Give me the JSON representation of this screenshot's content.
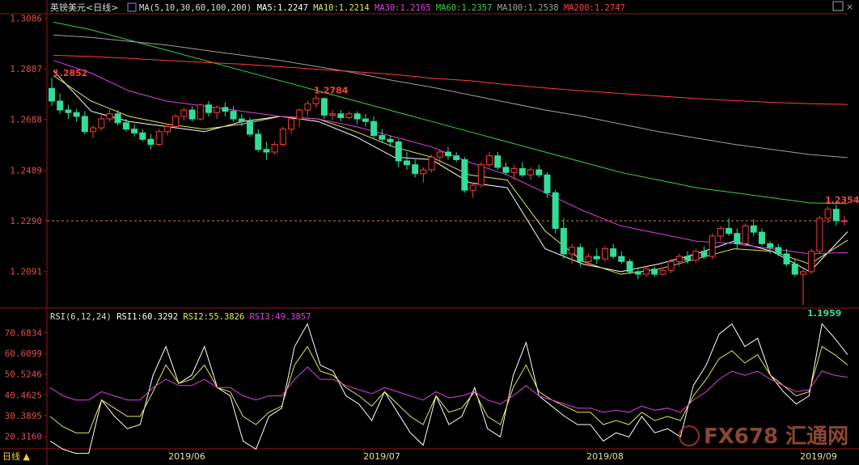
{
  "header": {
    "symbol": "英镑美元",
    "period": "<日线>",
    "items": [
      {
        "label": "MA(5,10,30,60,100,200)",
        "color": "#dddddd"
      },
      {
        "label": "MA5:1.2247",
        "color": "#ffffff"
      },
      {
        "label": "MA10:1.2214",
        "color": "#e6e65c"
      },
      {
        "label": "MA30:1.2165",
        "color": "#e040e0"
      },
      {
        "label": "MA60:1.2357",
        "color": "#40d040"
      },
      {
        "label": "MA100:1.2538",
        "color": "#a0a0a0"
      },
      {
        "label": "MA200:1.2747",
        "color": "#ff4040"
      }
    ]
  },
  "rsi_header": {
    "items": [
      {
        "label": "RSI(6,12,24)",
        "color": "#dddddd"
      },
      {
        "label": "RSI1:60.3292",
        "color": "#ffffff"
      },
      {
        "label": "RSI2:55.3826",
        "color": "#e6e65c"
      },
      {
        "label": "RSI3:49.3857",
        "color": "#e040e0"
      }
    ]
  },
  "price_axis_labels": [
    "1.3086",
    "1.2887",
    "1.2688",
    "1.2489",
    "1.2290",
    "1.2091"
  ],
  "rsi_axis_labels": [
    "70.6834",
    "60.6099",
    "50.5246",
    "40.4625",
    "30.3895",
    "20.3160"
  ],
  "date_labels": [
    "2019/06",
    "2019/07",
    "2019/08",
    "2019/09"
  ],
  "period_button": "日线 ▲",
  "watermark": "FX678 汇通网",
  "colors": {
    "up": "#ff3b3b",
    "down": "#33dd99",
    "grid": "#8b1a1a",
    "axis_text": "#e05050",
    "current_price_line": "#e07a3a"
  },
  "chart_data": [
    {
      "type": "candlestick",
      "title": "英镑美元<日线>",
      "ylim": [
        1.195,
        1.31
      ],
      "current_price": 1.229,
      "annotations": [
        {
          "label": "1.2852",
          "value": 1.2852,
          "kind": "high"
        },
        {
          "label": "1.2784",
          "value": 1.2784,
          "kind": "high"
        },
        {
          "label": "1.2354",
          "value": 1.2354,
          "kind": "high"
        },
        {
          "label": "1.1959",
          "value": 1.1959,
          "kind": "low"
        }
      ],
      "ohlc": [
        [
          1.281,
          1.2852,
          1.274,
          1.276
        ],
        [
          1.276,
          1.279,
          1.271,
          1.2725
        ],
        [
          1.2725,
          1.2745,
          1.269,
          1.2715
        ],
        [
          1.2715,
          1.273,
          1.268,
          1.27
        ],
        [
          1.27,
          1.272,
          1.263,
          1.264
        ],
        [
          1.264,
          1.2665,
          1.2615,
          1.2655
        ],
        [
          1.2655,
          1.2705,
          1.2645,
          1.269
        ],
        [
          1.269,
          1.2725,
          1.268,
          1.271
        ],
        [
          1.271,
          1.2725,
          1.2665,
          1.2675
        ],
        [
          1.2675,
          1.269,
          1.264,
          1.265
        ],
        [
          1.265,
          1.267,
          1.262,
          1.2635
        ],
        [
          1.2635,
          1.265,
          1.26,
          1.261
        ],
        [
          1.261,
          1.263,
          1.257,
          1.259
        ],
        [
          1.259,
          1.265,
          1.2585,
          1.264
        ],
        [
          1.264,
          1.267,
          1.2625,
          1.266
        ],
        [
          1.266,
          1.271,
          1.265,
          1.27
        ],
        [
          1.27,
          1.2735,
          1.2685,
          1.2725
        ],
        [
          1.2725,
          1.274,
          1.268,
          1.269
        ],
        [
          1.269,
          1.275,
          1.2685,
          1.2745
        ],
        [
          1.2745,
          1.276,
          1.27,
          1.2715
        ],
        [
          1.2715,
          1.2745,
          1.269,
          1.2735
        ],
        [
          1.2735,
          1.2755,
          1.27,
          1.272
        ],
        [
          1.272,
          1.274,
          1.268,
          1.269
        ],
        [
          1.269,
          1.271,
          1.266,
          1.268
        ],
        [
          1.268,
          1.2695,
          1.262,
          1.263
        ],
        [
          1.263,
          1.265,
          1.256,
          1.257
        ],
        [
          1.257,
          1.26,
          1.253,
          1.256
        ],
        [
          1.256,
          1.26,
          1.255,
          1.259
        ],
        [
          1.259,
          1.266,
          1.258,
          1.265
        ],
        [
          1.265,
          1.27,
          1.263,
          1.269
        ],
        [
          1.269,
          1.273,
          1.266,
          1.2725
        ],
        [
          1.2725,
          1.276,
          1.27,
          1.275
        ],
        [
          1.275,
          1.2784,
          1.2735,
          1.277
        ],
        [
          1.277,
          1.2775,
          1.269,
          1.2705
        ],
        [
          1.2705,
          1.2725,
          1.2685,
          1.271
        ],
        [
          1.271,
          1.2725,
          1.268,
          1.2695
        ],
        [
          1.2695,
          1.272,
          1.269,
          1.271
        ],
        [
          1.271,
          1.272,
          1.267,
          1.269
        ],
        [
          1.269,
          1.271,
          1.266,
          1.268
        ],
        [
          1.268,
          1.27,
          1.261,
          1.2625
        ],
        [
          1.2625,
          1.265,
          1.2595,
          1.261
        ],
        [
          1.261,
          1.2625,
          1.258,
          1.26
        ],
        [
          1.26,
          1.261,
          1.25,
          1.2525
        ],
        [
          1.2525,
          1.256,
          1.249,
          1.251
        ],
        [
          1.251,
          1.253,
          1.246,
          1.2475
        ],
        [
          1.2475,
          1.25,
          1.244,
          1.249
        ],
        [
          1.249,
          1.255,
          1.248,
          1.254
        ],
        [
          1.254,
          1.257,
          1.251,
          1.256
        ],
        [
          1.256,
          1.258,
          1.253,
          1.2545
        ],
        [
          1.2545,
          1.256,
          1.252,
          1.253
        ],
        [
          1.253,
          1.254,
          1.24,
          1.241
        ],
        [
          1.241,
          1.244,
          1.238,
          1.243
        ],
        [
          1.243,
          1.252,
          1.242,
          1.251
        ],
        [
          1.251,
          1.256,
          1.25,
          1.2545
        ],
        [
          1.2545,
          1.256,
          1.249,
          1.25
        ],
        [
          1.25,
          1.252,
          1.247,
          1.248
        ],
        [
          1.248,
          1.251,
          1.245,
          1.2495
        ],
        [
          1.2495,
          1.252,
          1.246,
          1.247
        ],
        [
          1.247,
          1.25,
          1.245,
          1.249
        ],
        [
          1.249,
          1.251,
          1.246,
          1.247
        ],
        [
          1.247,
          1.248,
          1.238,
          1.24
        ],
        [
          1.24,
          1.241,
          1.224,
          1.226
        ],
        [
          1.226,
          1.23,
          1.214,
          1.216
        ],
        [
          1.216,
          1.22,
          1.212,
          1.2185
        ],
        [
          1.2185,
          1.22,
          1.211,
          1.213
        ],
        [
          1.213,
          1.216,
          1.211,
          1.215
        ],
        [
          1.215,
          1.218,
          1.212,
          1.214
        ],
        [
          1.214,
          1.219,
          1.213,
          1.218
        ],
        [
          1.218,
          1.22,
          1.214,
          1.215
        ],
        [
          1.215,
          1.217,
          1.212,
          1.213
        ],
        [
          1.213,
          1.214,
          1.208,
          1.209
        ],
        [
          1.209,
          1.21,
          1.206,
          1.208
        ],
        [
          1.208,
          1.211,
          1.207,
          1.21
        ],
        [
          1.21,
          1.211,
          1.207,
          1.208
        ],
        [
          1.208,
          1.21,
          1.2075,
          1.2095
        ],
        [
          1.2095,
          1.214,
          1.2085,
          1.213
        ],
        [
          1.213,
          1.216,
          1.211,
          1.215
        ],
        [
          1.215,
          1.217,
          1.212,
          1.2135
        ],
        [
          1.2135,
          1.218,
          1.2125,
          1.217
        ],
        [
          1.217,
          1.219,
          1.214,
          1.215
        ],
        [
          1.215,
          1.224,
          1.214,
          1.223
        ],
        [
          1.223,
          1.227,
          1.221,
          1.226
        ],
        [
          1.226,
          1.23,
          1.223,
          1.224
        ],
        [
          1.224,
          1.226,
          1.218,
          1.22
        ],
        [
          1.22,
          1.228,
          1.219,
          1.227
        ],
        [
          1.227,
          1.2295,
          1.223,
          1.2245
        ],
        [
          1.2245,
          1.226,
          1.219,
          1.22
        ],
        [
          1.22,
          1.221,
          1.216,
          1.2185
        ],
        [
          1.2185,
          1.22,
          1.215,
          1.216
        ],
        [
          1.216,
          1.218,
          1.211,
          1.212
        ],
        [
          1.212,
          1.214,
          1.207,
          1.208
        ],
        [
          1.208,
          1.21,
          1.1959,
          1.209
        ],
        [
          1.209,
          1.218,
          1.208,
          1.217
        ],
        [
          1.217,
          1.231,
          1.216,
          1.23
        ],
        [
          1.23,
          1.2345,
          1.228,
          1.2335
        ],
        [
          1.2335,
          1.2354,
          1.227,
          1.229
        ],
        [
          1.229,
          1.231,
          1.227,
          1.229
        ]
      ],
      "moving_averages": [
        {
          "name": "MA5",
          "color": "#ffffff",
          "values": [
            1.288,
            1.272,
            1.268,
            1.266,
            1.264,
            1.268,
            1.27,
            1.268,
            1.262,
            1.254,
            1.253,
            1.244,
            1.242,
            1.218,
            1.212,
            1.209,
            1.212,
            1.216,
            1.221,
            1.217,
            1.209,
            1.2247
          ]
        },
        {
          "name": "MA10",
          "color": "#e6e65c",
          "values": [
            1.286,
            1.276,
            1.27,
            1.267,
            1.265,
            1.267,
            1.27,
            1.269,
            1.264,
            1.258,
            1.254,
            1.247,
            1.245,
            1.225,
            1.213,
            1.208,
            1.21,
            1.214,
            1.218,
            1.217,
            1.212,
            1.2214
          ]
        },
        {
          "name": "MA30",
          "color": "#e040e0",
          "values": [
            1.292,
            1.287,
            1.28,
            1.276,
            1.274,
            1.272,
            1.27,
            1.269,
            1.266,
            1.262,
            1.258,
            1.252,
            1.247,
            1.24,
            1.233,
            1.227,
            1.224,
            1.221,
            1.22,
            1.218,
            1.216,
            1.2165
          ]
        },
        {
          "name": "MA60",
          "color": "#40d040",
          "values": [
            1.307,
            1.304,
            1.3,
            1.296,
            1.292,
            1.288,
            1.284,
            1.28,
            1.276,
            1.272,
            1.268,
            1.264,
            1.26,
            1.256,
            1.252,
            1.248,
            1.245,
            1.242,
            1.24,
            1.238,
            1.236,
            1.2357
          ]
        },
        {
          "name": "MA100",
          "color": "#a0a0a0",
          "values": [
            1.302,
            1.301,
            1.2995,
            1.298,
            1.296,
            1.294,
            1.292,
            1.2895,
            1.287,
            1.284,
            1.2815,
            1.2785,
            1.2755,
            1.2725,
            1.27,
            1.267,
            1.264,
            1.2615,
            1.259,
            1.257,
            1.255,
            1.2538
          ]
        },
        {
          "name": "MA200",
          "color": "#ff4040",
          "values": [
            1.294,
            1.2935,
            1.2928,
            1.292,
            1.2912,
            1.2905,
            1.2895,
            1.2885,
            1.2875,
            1.2865,
            1.285,
            1.284,
            1.2825,
            1.2812,
            1.28,
            1.279,
            1.278,
            1.277,
            1.2762,
            1.2755,
            1.275,
            1.2747
          ]
        }
      ]
    },
    {
      "type": "line",
      "title": "RSI(6,12,24)",
      "ylim": [
        15,
        76
      ],
      "series": [
        {
          "name": "RSI1",
          "color": "#ffffff",
          "values": [
            18,
            14,
            12,
            12,
            38,
            30,
            24,
            26,
            50,
            64,
            46,
            50,
            64,
            44,
            40,
            18,
            14,
            30,
            34,
            64,
            75,
            55,
            52,
            40,
            36,
            28,
            42,
            32,
            22,
            16,
            40,
            26,
            30,
            44,
            24,
            20,
            50,
            66,
            40,
            35,
            30,
            26,
            26,
            18,
            22,
            20,
            30,
            22,
            24,
            20,
            45,
            55,
            70,
            75,
            64,
            68,
            50,
            42,
            36,
            40,
            75,
            68,
            60
          ]
        },
        {
          "name": "RSI2",
          "color": "#e6e65c",
          "values": [
            30,
            25,
            22,
            22,
            38,
            34,
            30,
            30,
            42,
            55,
            46,
            48,
            55,
            44,
            42,
            30,
            26,
            32,
            35,
            55,
            64,
            52,
            50,
            44,
            40,
            35,
            42,
            36,
            30,
            26,
            40,
            32,
            34,
            42,
            30,
            26,
            44,
            55,
            42,
            38,
            35,
            32,
            32,
            26,
            28,
            26,
            32,
            28,
            30,
            28,
            40,
            48,
            58,
            62,
            56,
            60,
            50,
            45,
            40,
            42,
            64,
            60,
            55
          ]
        },
        {
          "name": "RSI3",
          "color": "#e040e0",
          "values": [
            44,
            40,
            38,
            38,
            42,
            40,
            38,
            38,
            44,
            48,
            45,
            45,
            48,
            44,
            44,
            40,
            38,
            40,
            40,
            48,
            54,
            48,
            48,
            45,
            43,
            41,
            44,
            42,
            40,
            38,
            42,
            39,
            40,
            42,
            38,
            36,
            40,
            45,
            40,
            38,
            36,
            34,
            34,
            32,
            33,
            32,
            35,
            33,
            34,
            32,
            38,
            42,
            48,
            52,
            50,
            52,
            48,
            45,
            42,
            43,
            52,
            50,
            49
          ]
        }
      ]
    }
  ]
}
